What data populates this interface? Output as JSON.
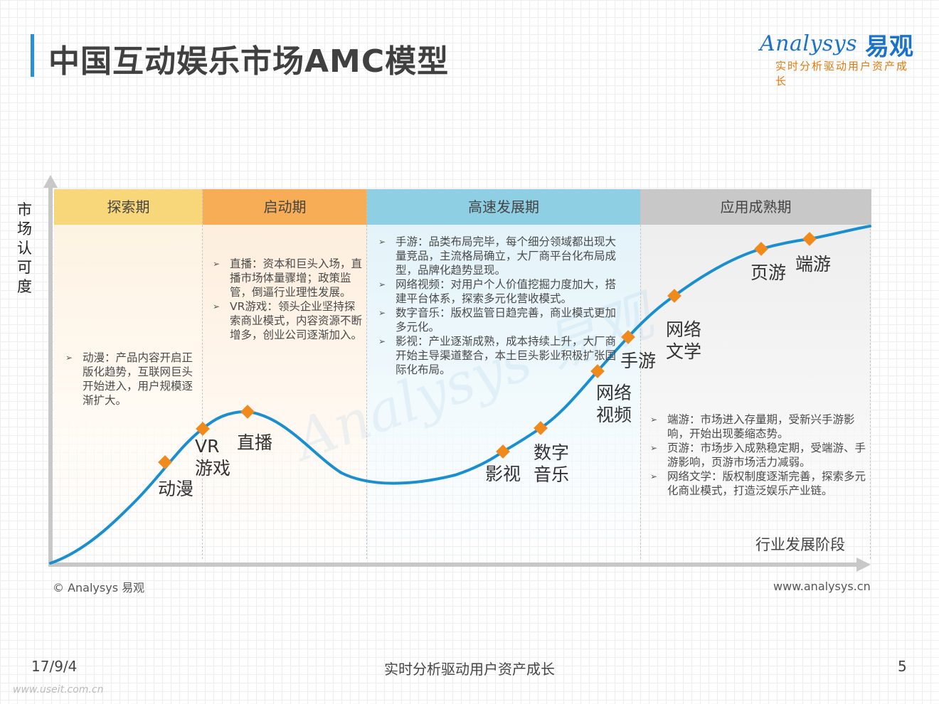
{
  "header": {
    "title": "中国互动娱乐市场AMC模型",
    "logo_en": "Analysys",
    "logo_cn": "易观",
    "logo_tagline": "实时分析驱动用户资产成长"
  },
  "colors": {
    "accent": "#2b8fd6",
    "curve": "#1a8fd0",
    "marker": "#f08a1c",
    "stage1_head": "#f8d77a",
    "stage2_head": "#f6ad55",
    "stage3_head": "#8ecfe3",
    "stage4_head": "#c8c8c8"
  },
  "diagram": {
    "y_axis_label": "市场认可度",
    "x_axis_label": "行业发展阶段",
    "stages": [
      {
        "name": "探索期",
        "notes": [
          "动漫：产品内容开启正版化趋势，互联网巨头开始进入，用户规模逐渐扩大。"
        ]
      },
      {
        "name": "启动期",
        "notes": [
          "直播：资本和巨头入场，直播市场体量骤增；政策监管，倒逼行业理性发展。",
          "VR游戏：领头企业坚持探索商业模式，内容资源不断增多，创业公司逐渐加入。"
        ]
      },
      {
        "name": "高速发展期",
        "notes": [
          "手游：品类布局完毕，每个细分领域都出现大量竞品，主流格局确立，大厂商平台化布局成型，品牌化趋势显现。",
          "网络视频：对用户个人价值挖掘力度加大，搭建平台体系，探索多元化营收模式。",
          "数字音乐：版权监管日趋完善，商业模式更加多元化。",
          "影视：产业逐渐成熟，成本持续上升，大厂商开始主导渠道整合，本土巨头影业积极扩张国际化布局。"
        ]
      },
      {
        "name": "应用成熟期",
        "notes": [
          "端游：市场进入存量期，受新兴手游影响，开始出现萎缩态势。",
          "页游：市场步入成熟稳定期，受端游、手游影响，页游市场活力减弱。",
          "网络文学：版权制度逐渐完善，探索多元化商业模式，打造泛娱乐产业链。"
        ]
      }
    ],
    "points": [
      {
        "label": "动漫"
      },
      {
        "label": "VR\n游戏"
      },
      {
        "label": "直播"
      },
      {
        "label": "影视"
      },
      {
        "label": "数字\n音乐"
      },
      {
        "label": "网络\n视频"
      },
      {
        "label": "手游"
      },
      {
        "label": "网络\n文学"
      },
      {
        "label": "页游"
      },
      {
        "label": "端游"
      }
    ]
  },
  "footer": {
    "copyright": "© Analysys 易观",
    "website": "www.analysys.cn",
    "date": "17/9/4",
    "center": "实时分析驱动用户资产成长",
    "page": "5",
    "watermark": "www.useit.com.cn"
  }
}
